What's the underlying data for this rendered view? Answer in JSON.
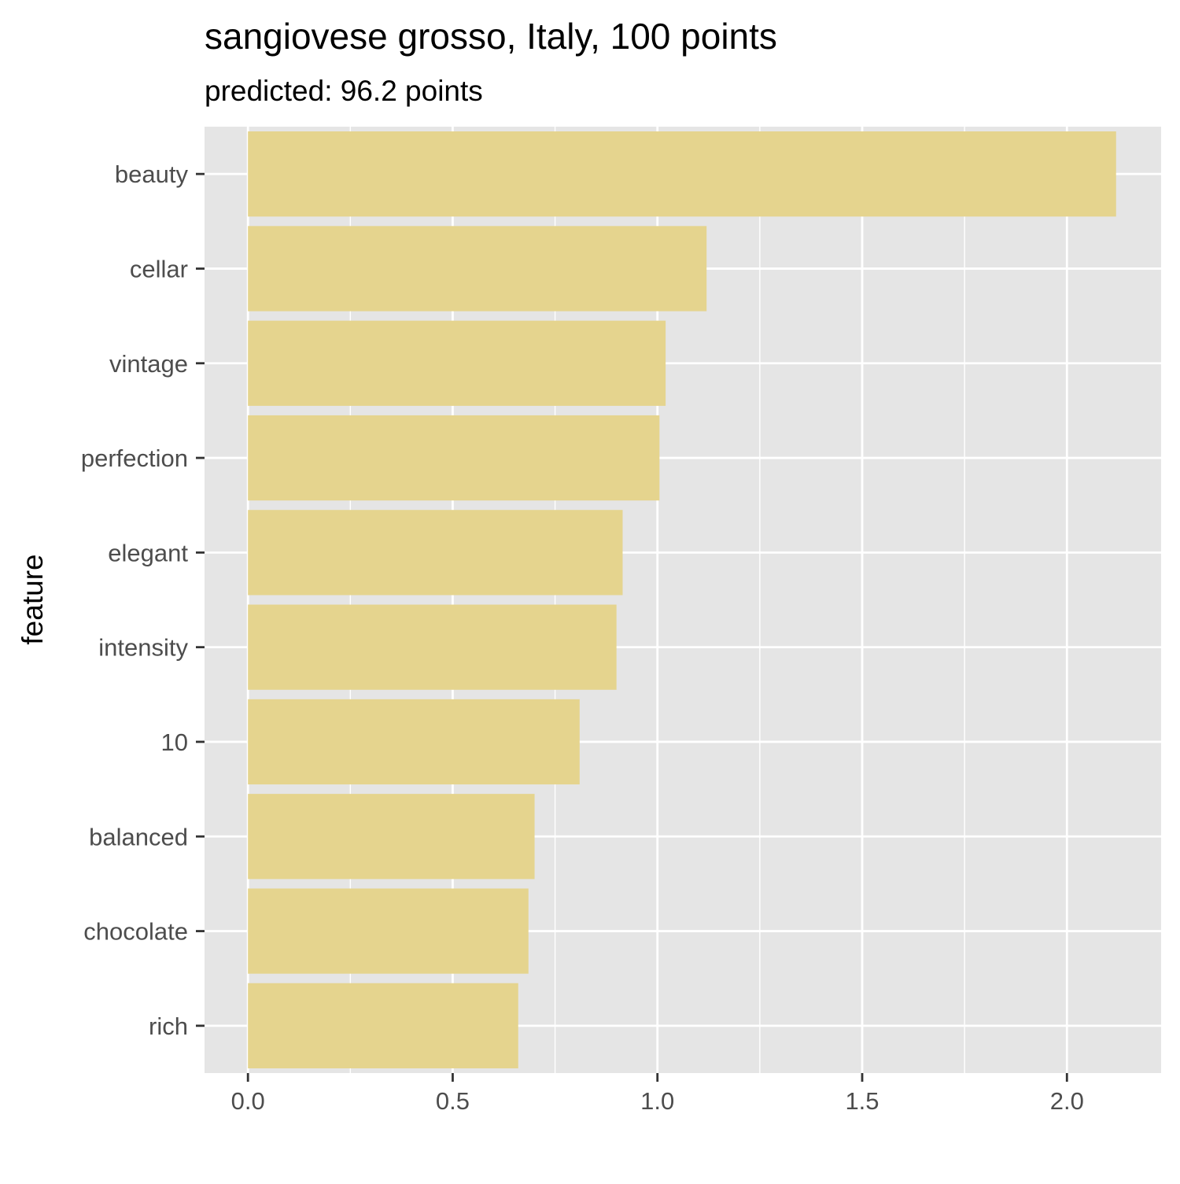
{
  "chart_data": {
    "type": "bar",
    "orientation": "horizontal",
    "title": "sangiovese grosso, Italy, 100 points",
    "subtitle": "predicted: 96.2 points",
    "xlabel": "",
    "ylabel": "feature",
    "categories": [
      "beauty",
      "cellar",
      "vintage",
      "perfection",
      "elegant",
      "intensity",
      "10",
      "balanced",
      "chocolate",
      "rich"
    ],
    "values": [
      2.12,
      1.12,
      1.02,
      1.005,
      0.915,
      0.9,
      0.81,
      0.7,
      0.685,
      0.66
    ],
    "xlim": [
      -0.106,
      2.23
    ],
    "x_ticks": [
      0.0,
      0.5,
      1.0,
      1.5,
      2.0
    ],
    "x_tick_labels": [
      "0.0",
      "0.5",
      "1.0",
      "1.5",
      "2.0"
    ],
    "grid": true,
    "legend": "none",
    "colors": {
      "bar": "#e5d48e",
      "panel": "#e5e5e5",
      "grid": "#ffffff",
      "tick": "#333333"
    }
  }
}
